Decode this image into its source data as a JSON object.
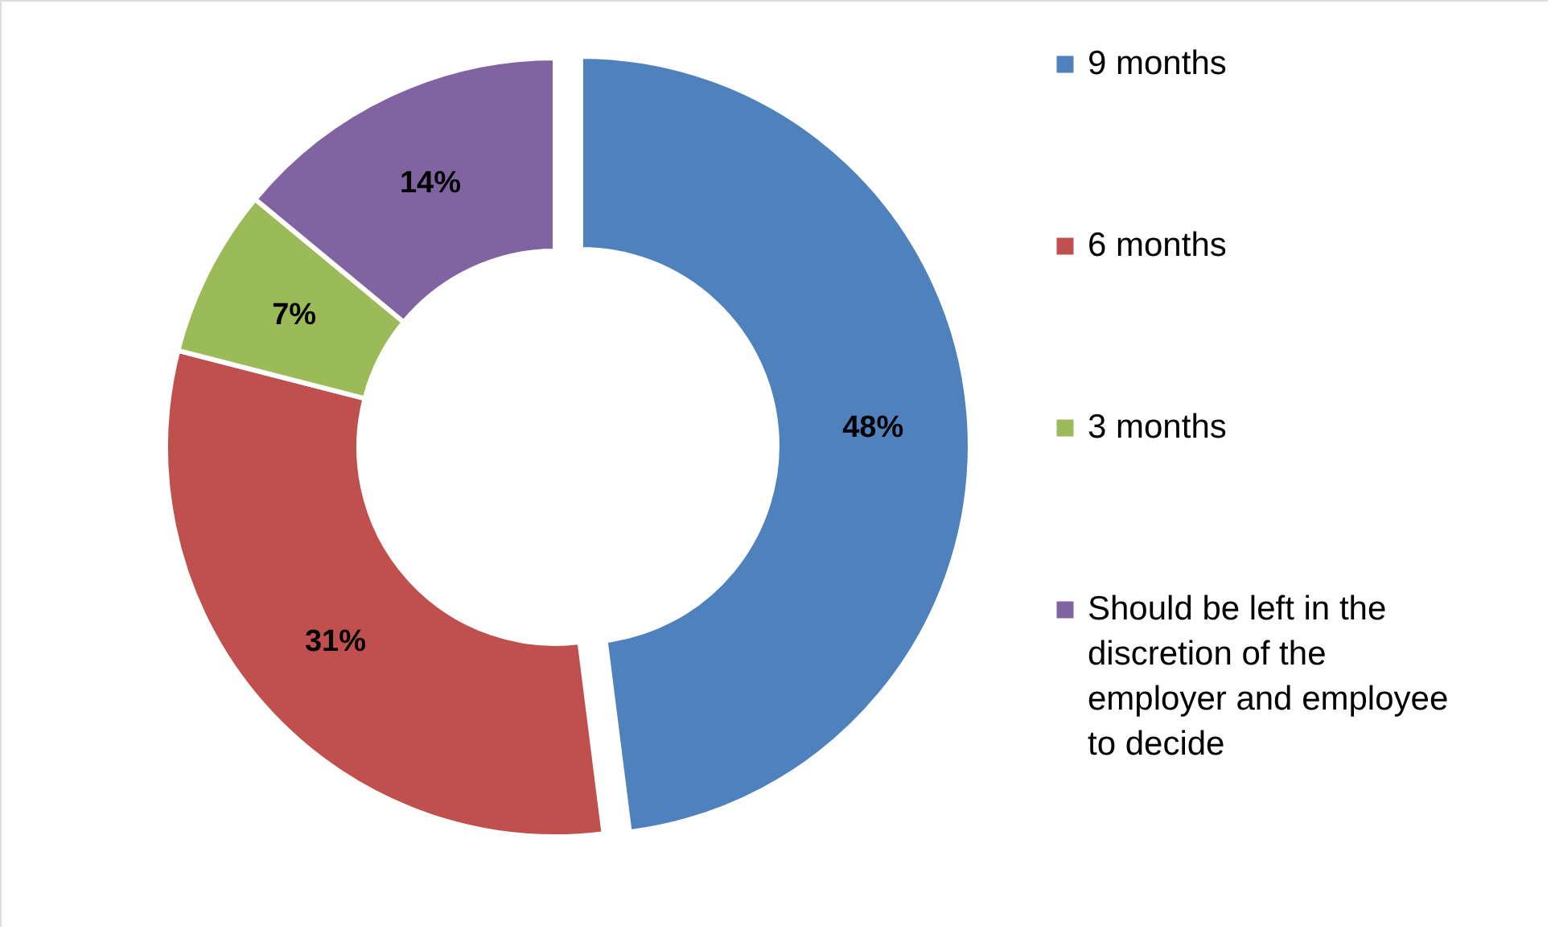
{
  "chart_data": {
    "type": "donut",
    "categories": [
      "9 months",
      "6 months",
      "3 months",
      "Should be left in the discretion of the employer and employee to decide"
    ],
    "values": [
      48,
      31,
      7,
      14
    ],
    "colors": [
      "#4f81bd",
      "#c0504d",
      "#9bbb59",
      "#8064a2"
    ],
    "value_labels": [
      "48%",
      "31%",
      "7%",
      "14%"
    ],
    "legend": "right"
  }
}
